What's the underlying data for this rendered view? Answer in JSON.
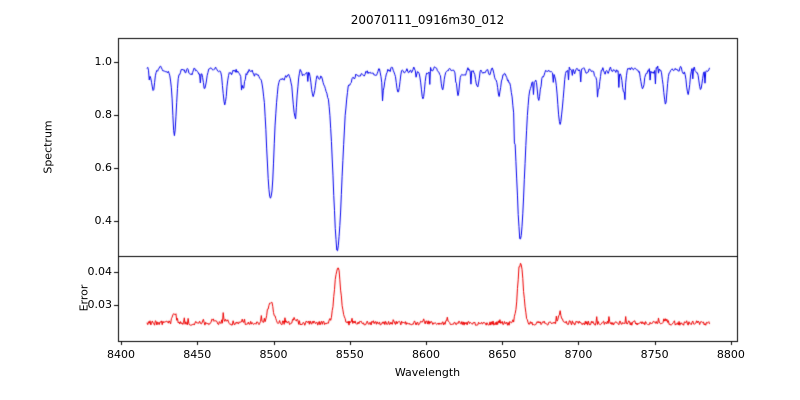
{
  "chart_data": {
    "type": "line",
    "title": "20070111_0916m30_012",
    "xlabel": "Wavelength",
    "xlim": [
      8398,
      8804
    ],
    "x_ticks": [
      8400,
      8450,
      8500,
      8550,
      8600,
      8650,
      8700,
      8750,
      8800
    ],
    "background": "#ffffff",
    "axis_color": "#000000",
    "panels": [
      {
        "ylabel": "Spectrum",
        "ylim": [
          0.27,
          1.09
        ],
        "y_ticks": [
          0.4,
          0.6,
          0.8,
          1.0
        ],
        "decimals": 1,
        "color": "#0000ee",
        "continuum": 0.97,
        "noise": 0.022,
        "data_range": [
          8417,
          8786
        ],
        "absorption_lines": [
          {
            "wavelength": 8421,
            "depth": 0.08,
            "width": 1.0
          },
          {
            "wavelength": 8435,
            "depth": 0.24,
            "width": 1.3
          },
          {
            "wavelength": 8455,
            "depth": 0.08,
            "width": 1.0
          },
          {
            "wavelength": 8468,
            "depth": 0.13,
            "width": 1.2
          },
          {
            "wavelength": 8480,
            "depth": 0.07,
            "width": 1.0
          },
          {
            "wavelength": 8498,
            "depth": 0.49,
            "width": 2.2
          },
          {
            "wavelength": 8514,
            "depth": 0.16,
            "width": 1.3
          },
          {
            "wavelength": 8526,
            "depth": 0.08,
            "width": 1.0
          },
          {
            "wavelength": 8542,
            "depth": 0.67,
            "width": 2.8
          },
          {
            "wavelength": 8572,
            "depth": 0.07,
            "width": 1.0
          },
          {
            "wavelength": 8582,
            "depth": 0.09,
            "width": 1.0
          },
          {
            "wavelength": 8598,
            "depth": 0.11,
            "width": 1.0
          },
          {
            "wavelength": 8611,
            "depth": 0.07,
            "width": 1.0
          },
          {
            "wavelength": 8621,
            "depth": 0.09,
            "width": 1.0
          },
          {
            "wavelength": 8634,
            "depth": 0.06,
            "width": 1.0
          },
          {
            "wavelength": 8648,
            "depth": 0.08,
            "width": 1.0
          },
          {
            "wavelength": 8662,
            "depth": 0.64,
            "width": 2.5
          },
          {
            "wavelength": 8674,
            "depth": 0.09,
            "width": 1.0
          },
          {
            "wavelength": 8688,
            "depth": 0.2,
            "width": 1.5
          },
          {
            "wavelength": 8713,
            "depth": 0.08,
            "width": 1.0
          },
          {
            "wavelength": 8730,
            "depth": 0.09,
            "width": 1.0
          },
          {
            "wavelength": 8742,
            "depth": 0.07,
            "width": 1.0
          },
          {
            "wavelength": 8757,
            "depth": 0.12,
            "width": 1.2
          },
          {
            "wavelength": 8772,
            "depth": 0.09,
            "width": 1.0
          },
          {
            "wavelength": 8780,
            "depth": 0.08,
            "width": 1.0
          }
        ]
      },
      {
        "ylabel": "Error",
        "ylim": [
          0.019,
          0.045
        ],
        "y_ticks": [
          0.03,
          0.04
        ],
        "decimals": 2,
        "color": "#ee0000",
        "baseline": 0.0245,
        "noise": 0.0007,
        "peaks": [
          {
            "wavelength": 8435,
            "height": 0.0032,
            "width": 1.2
          },
          {
            "wavelength": 8460,
            "height": 0.001,
            "width": 1.2
          },
          {
            "wavelength": 8468,
            "height": 0.0012,
            "width": 1.2
          },
          {
            "wavelength": 8498,
            "height": 0.0066,
            "width": 1.8
          },
          {
            "wavelength": 8514,
            "height": 0.0013,
            "width": 1.2
          },
          {
            "wavelength": 8542,
            "height": 0.017,
            "width": 2.0
          },
          {
            "wavelength": 8598,
            "height": 0.0008,
            "width": 1.0
          },
          {
            "wavelength": 8662,
            "height": 0.0186,
            "width": 1.8
          },
          {
            "wavelength": 8688,
            "height": 0.0026,
            "width": 1.4
          },
          {
            "wavelength": 8757,
            "height": 0.0014,
            "width": 1.2
          }
        ]
      }
    ]
  }
}
